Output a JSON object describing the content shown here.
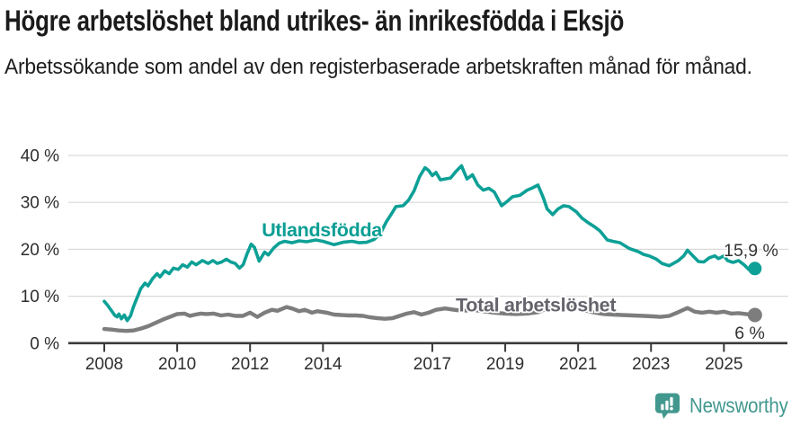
{
  "header": {
    "title": "Högre arbetslöshet bland utrikes- än inrikesfödda i Eksjö",
    "subtitle": "Arbetssökande som andel av den registerbaserade arbetskraften månad för månad."
  },
  "footer": {
    "brand": "Newsworthy",
    "logo_icon": "speech-bubble-bar-chart",
    "brand_color": "#42988f"
  },
  "chart_data": {
    "type": "line",
    "title": "Högre arbetslöshet bland utrikes- än inrikesfödda i Eksjö",
    "xlabel": "",
    "ylabel": "",
    "grid": true,
    "legend_position": "inline-labels",
    "x_range": [
      2008,
      2025.85
    ],
    "ylim": [
      0,
      42
    ],
    "y_ticks": [
      {
        "value": 0,
        "label": "0 %"
      },
      {
        "value": 10,
        "label": "10 %"
      },
      {
        "value": 20,
        "label": "20 %"
      },
      {
        "value": 30,
        "label": "30 %"
      },
      {
        "value": 40,
        "label": "40 %"
      }
    ],
    "x_ticks": [
      {
        "value": 2008,
        "label": "2008"
      },
      {
        "value": 2010,
        "label": "2010"
      },
      {
        "value": 2012,
        "label": "2012"
      },
      {
        "value": 2014,
        "label": "2014"
      },
      {
        "value": 2017,
        "label": "2017"
      },
      {
        "value": 2019,
        "label": "2019"
      },
      {
        "value": 2021,
        "label": "2021"
      },
      {
        "value": 2023,
        "label": "2023"
      },
      {
        "value": 2025,
        "label": "2025"
      }
    ],
    "colors": {
      "grid": "#d9d9d9",
      "axis": "#3a3a3a",
      "tick_text": "#2e2e2e",
      "end_label_text": "#333333"
    },
    "series": [
      {
        "name": "Total arbetslöshet",
        "color": "#7d7d7d",
        "label_color": "#64646c",
        "label_anchor": {
          "x": 2019.84,
          "y": 8.1
        },
        "end_label": "6 %",
        "end_value": 6.0,
        "line_width": 4.4,
        "dot_radius": 8,
        "points": [
          [
            2008.0,
            3.0
          ],
          [
            2008.2,
            2.9
          ],
          [
            2008.4,
            2.7
          ],
          [
            2008.6,
            2.6
          ],
          [
            2008.8,
            2.7
          ],
          [
            2009.0,
            3.1
          ],
          [
            2009.2,
            3.6
          ],
          [
            2009.4,
            4.3
          ],
          [
            2009.6,
            5.0
          ],
          [
            2009.8,
            5.6
          ],
          [
            2010.0,
            6.2
          ],
          [
            2010.2,
            6.3
          ],
          [
            2010.35,
            5.8
          ],
          [
            2010.5,
            6.1
          ],
          [
            2010.65,
            6.3
          ],
          [
            2010.8,
            6.2
          ],
          [
            2011.0,
            6.3
          ],
          [
            2011.2,
            5.9
          ],
          [
            2011.4,
            6.1
          ],
          [
            2011.6,
            5.8
          ],
          [
            2011.8,
            5.8
          ],
          [
            2012.0,
            6.5
          ],
          [
            2012.2,
            5.6
          ],
          [
            2012.4,
            6.5
          ],
          [
            2012.6,
            7.1
          ],
          [
            2012.75,
            6.9
          ],
          [
            2013.0,
            7.7
          ],
          [
            2013.15,
            7.4
          ],
          [
            2013.35,
            6.8
          ],
          [
            2013.5,
            7.1
          ],
          [
            2013.7,
            6.5
          ],
          [
            2013.85,
            6.8
          ],
          [
            2014.1,
            6.5
          ],
          [
            2014.3,
            6.1
          ],
          [
            2014.5,
            6.0
          ],
          [
            2014.7,
            5.9
          ],
          [
            2014.9,
            5.9
          ],
          [
            2015.1,
            5.8
          ],
          [
            2015.3,
            5.5
          ],
          [
            2015.5,
            5.3
          ],
          [
            2015.7,
            5.2
          ],
          [
            2015.9,
            5.3
          ],
          [
            2016.1,
            5.8
          ],
          [
            2016.3,
            6.3
          ],
          [
            2016.5,
            6.6
          ],
          [
            2016.7,
            6.1
          ],
          [
            2016.9,
            6.5
          ],
          [
            2017.1,
            7.1
          ],
          [
            2017.35,
            7.4
          ],
          [
            2017.6,
            7.1
          ],
          [
            2017.85,
            6.9
          ],
          [
            2018.1,
            7.1
          ],
          [
            2018.4,
            6.8
          ],
          [
            2018.7,
            6.5
          ],
          [
            2019.0,
            6.3
          ],
          [
            2019.3,
            6.2
          ],
          [
            2019.6,
            6.3
          ],
          [
            2019.9,
            6.6
          ],
          [
            2020.2,
            7.6
          ],
          [
            2020.5,
            8.1
          ],
          [
            2020.8,
            7.7
          ],
          [
            2021.1,
            7.1
          ],
          [
            2021.4,
            6.6
          ],
          [
            2021.7,
            6.2
          ],
          [
            2021.95,
            6.1
          ],
          [
            2022.2,
            6.0
          ],
          [
            2022.5,
            5.9
          ],
          [
            2022.8,
            5.8
          ],
          [
            2023.05,
            5.7
          ],
          [
            2023.25,
            5.6
          ],
          [
            2023.5,
            5.8
          ],
          [
            2023.75,
            6.6
          ],
          [
            2024.0,
            7.5
          ],
          [
            2024.2,
            6.7
          ],
          [
            2024.4,
            6.5
          ],
          [
            2024.6,
            6.7
          ],
          [
            2024.8,
            6.5
          ],
          [
            2025.0,
            6.7
          ],
          [
            2025.2,
            6.3
          ],
          [
            2025.4,
            6.4
          ],
          [
            2025.6,
            6.2
          ],
          [
            2025.85,
            6.0
          ]
        ]
      },
      {
        "name": "Utlandsfödda",
        "color": "#0da096",
        "label_color": "#0a9e94",
        "label_anchor": {
          "x": 2013.97,
          "y": 24.1
        },
        "end_label": "15,9 %",
        "end_value": 15.9,
        "line_width": 3.6,
        "dot_radius": 7.5,
        "points": [
          [
            2008.0,
            8.9
          ],
          [
            2008.08,
            8.2
          ],
          [
            2008.18,
            7.1
          ],
          [
            2008.28,
            6.0
          ],
          [
            2008.35,
            5.6
          ],
          [
            2008.4,
            6.2
          ],
          [
            2008.47,
            5.2
          ],
          [
            2008.55,
            6.0
          ],
          [
            2008.63,
            4.8
          ],
          [
            2008.72,
            5.8
          ],
          [
            2008.8,
            7.7
          ],
          [
            2008.88,
            9.3
          ],
          [
            2009.0,
            11.6
          ],
          [
            2009.12,
            12.8
          ],
          [
            2009.2,
            12.2
          ],
          [
            2009.33,
            13.8
          ],
          [
            2009.45,
            14.8
          ],
          [
            2009.53,
            14.1
          ],
          [
            2009.66,
            15.4
          ],
          [
            2009.78,
            14.8
          ],
          [
            2009.9,
            16.0
          ],
          [
            2010.03,
            15.7
          ],
          [
            2010.15,
            16.7
          ],
          [
            2010.28,
            16.2
          ],
          [
            2010.4,
            17.3
          ],
          [
            2010.52,
            16.7
          ],
          [
            2010.69,
            17.6
          ],
          [
            2010.85,
            17.0
          ],
          [
            2010.98,
            17.6
          ],
          [
            2011.1,
            17.0
          ],
          [
            2011.22,
            17.3
          ],
          [
            2011.35,
            17.9
          ],
          [
            2011.47,
            17.3
          ],
          [
            2011.59,
            17.0
          ],
          [
            2011.71,
            16.0
          ],
          [
            2011.81,
            16.7
          ],
          [
            2011.91,
            18.9
          ],
          [
            2012.03,
            21.1
          ],
          [
            2012.12,
            20.4
          ],
          [
            2012.25,
            17.5
          ],
          [
            2012.4,
            19.4
          ],
          [
            2012.5,
            18.8
          ],
          [
            2012.65,
            20.3
          ],
          [
            2012.8,
            21.3
          ],
          [
            2012.95,
            21.7
          ],
          [
            2013.15,
            21.4
          ],
          [
            2013.35,
            21.8
          ],
          [
            2013.55,
            21.6
          ],
          [
            2013.8,
            22.0
          ],
          [
            2014.0,
            21.7
          ],
          [
            2014.3,
            21.0
          ],
          [
            2014.55,
            21.5
          ],
          [
            2014.8,
            21.7
          ],
          [
            2015.0,
            21.4
          ],
          [
            2015.2,
            21.5
          ],
          [
            2015.4,
            22.1
          ],
          [
            2015.57,
            23.3
          ],
          [
            2015.74,
            25.9
          ],
          [
            2015.9,
            27.8
          ],
          [
            2016.0,
            29.1
          ],
          [
            2016.2,
            29.3
          ],
          [
            2016.35,
            30.5
          ],
          [
            2016.5,
            32.5
          ],
          [
            2016.65,
            35.5
          ],
          [
            2016.8,
            37.4
          ],
          [
            2016.9,
            36.8
          ],
          [
            2017.0,
            35.7
          ],
          [
            2017.1,
            36.4
          ],
          [
            2017.22,
            34.8
          ],
          [
            2017.35,
            35.0
          ],
          [
            2017.5,
            35.2
          ],
          [
            2017.65,
            36.6
          ],
          [
            2017.8,
            37.8
          ],
          [
            2017.95,
            35.0
          ],
          [
            2018.1,
            35.9
          ],
          [
            2018.25,
            33.7
          ],
          [
            2018.4,
            32.6
          ],
          [
            2018.55,
            33.0
          ],
          [
            2018.7,
            32.2
          ],
          [
            2018.9,
            29.3
          ],
          [
            2019.05,
            30.2
          ],
          [
            2019.2,
            31.2
          ],
          [
            2019.4,
            31.5
          ],
          [
            2019.6,
            32.6
          ],
          [
            2019.75,
            33.1
          ],
          [
            2019.9,
            33.7
          ],
          [
            2020.05,
            30.9
          ],
          [
            2020.15,
            28.6
          ],
          [
            2020.3,
            27.4
          ],
          [
            2020.45,
            28.6
          ],
          [
            2020.6,
            29.3
          ],
          [
            2020.75,
            29.1
          ],
          [
            2020.95,
            28.0
          ],
          [
            2021.1,
            26.7
          ],
          [
            2021.25,
            25.8
          ],
          [
            2021.45,
            24.8
          ],
          [
            2021.6,
            23.9
          ],
          [
            2021.8,
            22.0
          ],
          [
            2021.95,
            21.7
          ],
          [
            2022.15,
            21.4
          ],
          [
            2022.4,
            20.2
          ],
          [
            2022.65,
            19.5
          ],
          [
            2022.8,
            18.9
          ],
          [
            2022.95,
            18.6
          ],
          [
            2023.15,
            17.9
          ],
          [
            2023.3,
            17.0
          ],
          [
            2023.5,
            16.5
          ],
          [
            2023.75,
            17.6
          ],
          [
            2023.9,
            18.6
          ],
          [
            2024.0,
            19.8
          ],
          [
            2024.15,
            18.6
          ],
          [
            2024.3,
            17.4
          ],
          [
            2024.45,
            17.3
          ],
          [
            2024.6,
            18.2
          ],
          [
            2024.75,
            18.6
          ],
          [
            2024.85,
            18.0
          ],
          [
            2025.0,
            18.6
          ],
          [
            2025.1,
            17.6
          ],
          [
            2025.25,
            17.2
          ],
          [
            2025.4,
            17.6
          ],
          [
            2025.55,
            16.7
          ],
          [
            2025.7,
            15.6
          ],
          [
            2025.85,
            15.9
          ]
        ]
      }
    ]
  }
}
